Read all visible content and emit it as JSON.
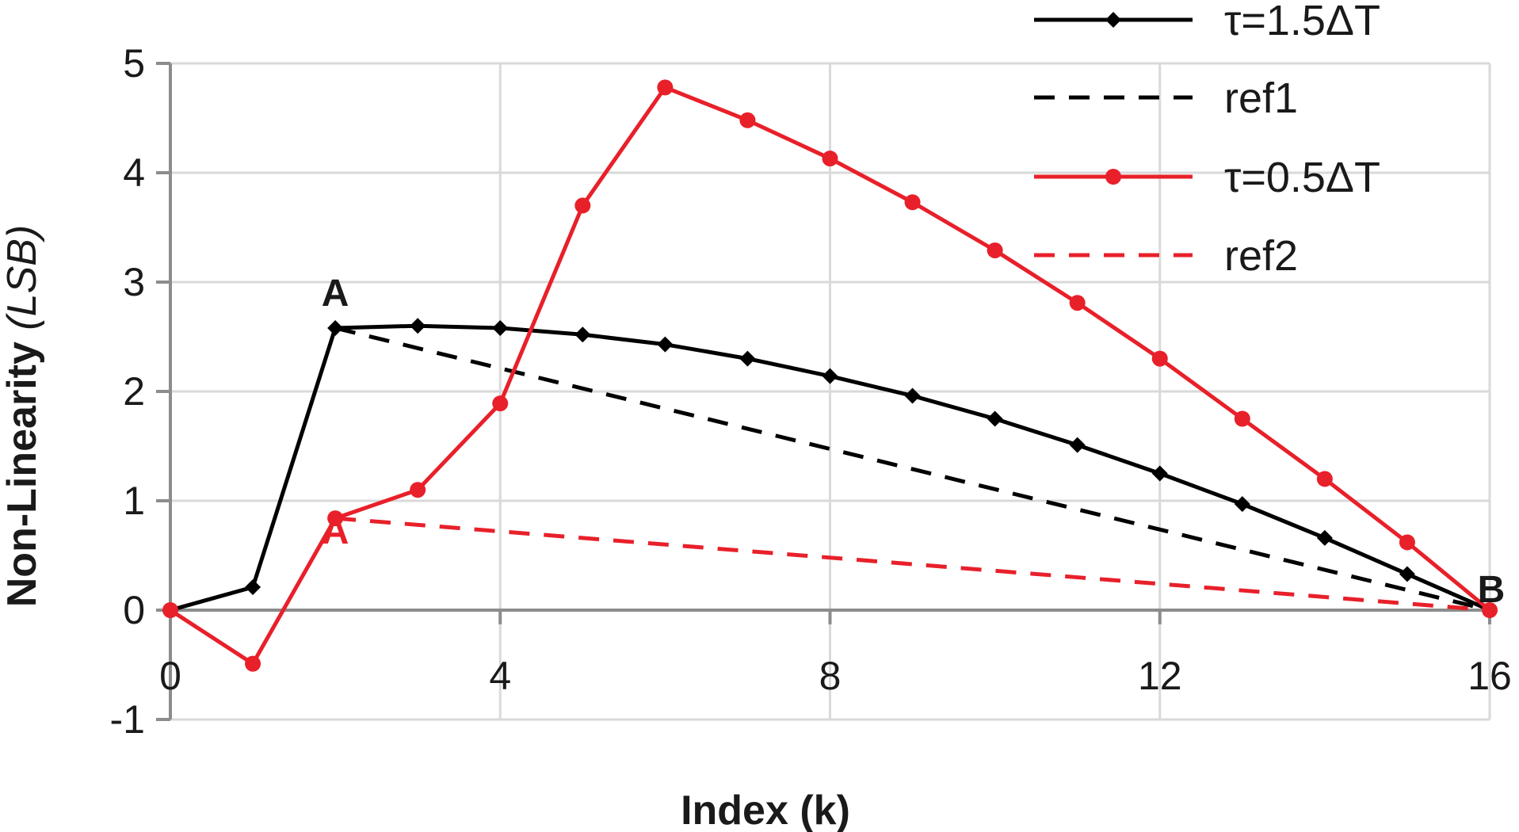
{
  "chart_data": {
    "type": "line",
    "title": "",
    "xlabel": "Index (k)",
    "ylabel_main": "Non-Linearity ",
    "ylabel_unit": "(LSB)",
    "xlim": [
      0,
      16
    ],
    "ylim": [
      -1,
      5
    ],
    "xticks": [
      0,
      4,
      8,
      12,
      16
    ],
    "yticks": [
      -1,
      0,
      1,
      2,
      3,
      4,
      5
    ],
    "grid": true,
    "legend_position": "top-right",
    "colors": {
      "black": "#000000",
      "red": "#e8202a",
      "grid": "#d9d9d9",
      "axis": "#8c8c8c"
    },
    "series": [
      {
        "name": "τ=1.5ΔT",
        "color": "#000000",
        "style": "solid",
        "marker": "diamond",
        "x": [
          0,
          1,
          2,
          3,
          4,
          5,
          6,
          7,
          8,
          9,
          10,
          11,
          12,
          13,
          14,
          15,
          16
        ],
        "values": [
          0,
          0.21,
          2.58,
          2.6,
          2.58,
          2.52,
          2.43,
          2.3,
          2.14,
          1.96,
          1.75,
          1.51,
          1.25,
          0.97,
          0.66,
          0.33,
          0
        ]
      },
      {
        "name": "ref1",
        "color": "#000000",
        "style": "dashed",
        "marker": "none",
        "x": [
          2,
          16
        ],
        "values": [
          2.58,
          0
        ]
      },
      {
        "name": "τ=0.5ΔT",
        "color": "#e8202a",
        "style": "solid",
        "marker": "circle",
        "x": [
          0,
          1,
          2,
          3,
          4,
          5,
          6,
          7,
          8,
          9,
          10,
          11,
          12,
          13,
          14,
          15,
          16
        ],
        "values": [
          0,
          -0.49,
          0.84,
          1.1,
          1.89,
          3.7,
          4.78,
          4.48,
          4.13,
          3.73,
          3.29,
          2.81,
          2.3,
          1.75,
          1.2,
          0.62,
          0
        ]
      },
      {
        "name": "ref2",
        "color": "#e8202a",
        "style": "dashed",
        "marker": "none",
        "x": [
          2,
          16
        ],
        "values": [
          0.84,
          0
        ]
      }
    ],
    "annotations": [
      {
        "text": "A",
        "x": 2,
        "y": 2.58,
        "color": "#1a1a1a"
      },
      {
        "text": "A",
        "x": 2,
        "y": 0.84,
        "color": "#e8202a"
      },
      {
        "text": "B",
        "x": 16,
        "y": 0,
        "color": "#1a1a1a"
      }
    ]
  }
}
